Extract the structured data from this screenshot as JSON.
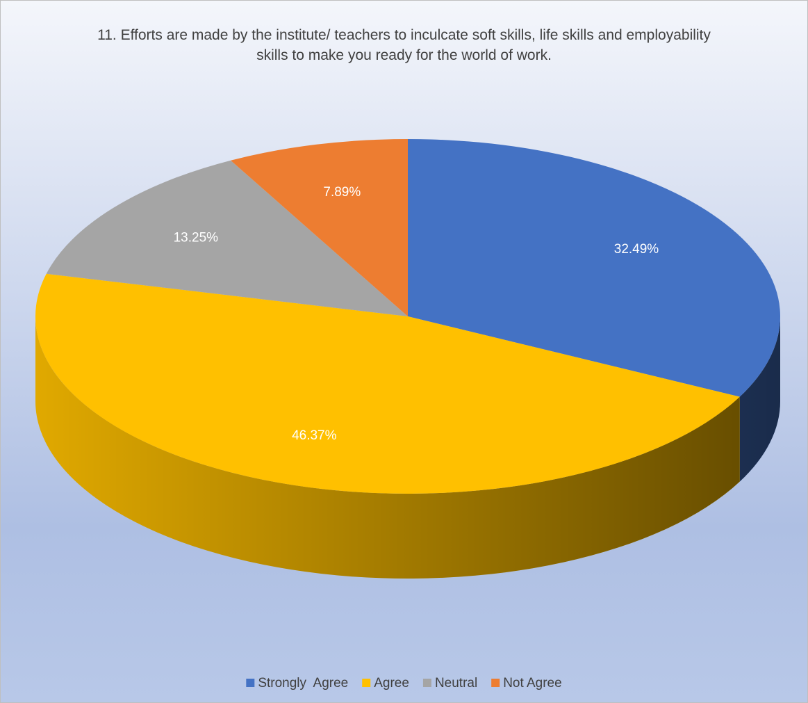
{
  "chart_data": {
    "type": "pie",
    "title": "11. Efforts are made by the institute/ teachers to inculcate soft skills, life skills and employability skills to make you ready for the world of work.",
    "categories": [
      "Strongly  Agree",
      "Agree",
      "Neutral",
      "Not Agree"
    ],
    "values": [
      32.49,
      46.37,
      13.25,
      7.89
    ],
    "value_labels": [
      "32.49%",
      "46.37%",
      "13.25%",
      "7.89%"
    ],
    "colors": [
      "#4472c4",
      "#ffc000",
      "#a5a5a5",
      "#ed7d31"
    ],
    "legend": "bottom"
  }
}
